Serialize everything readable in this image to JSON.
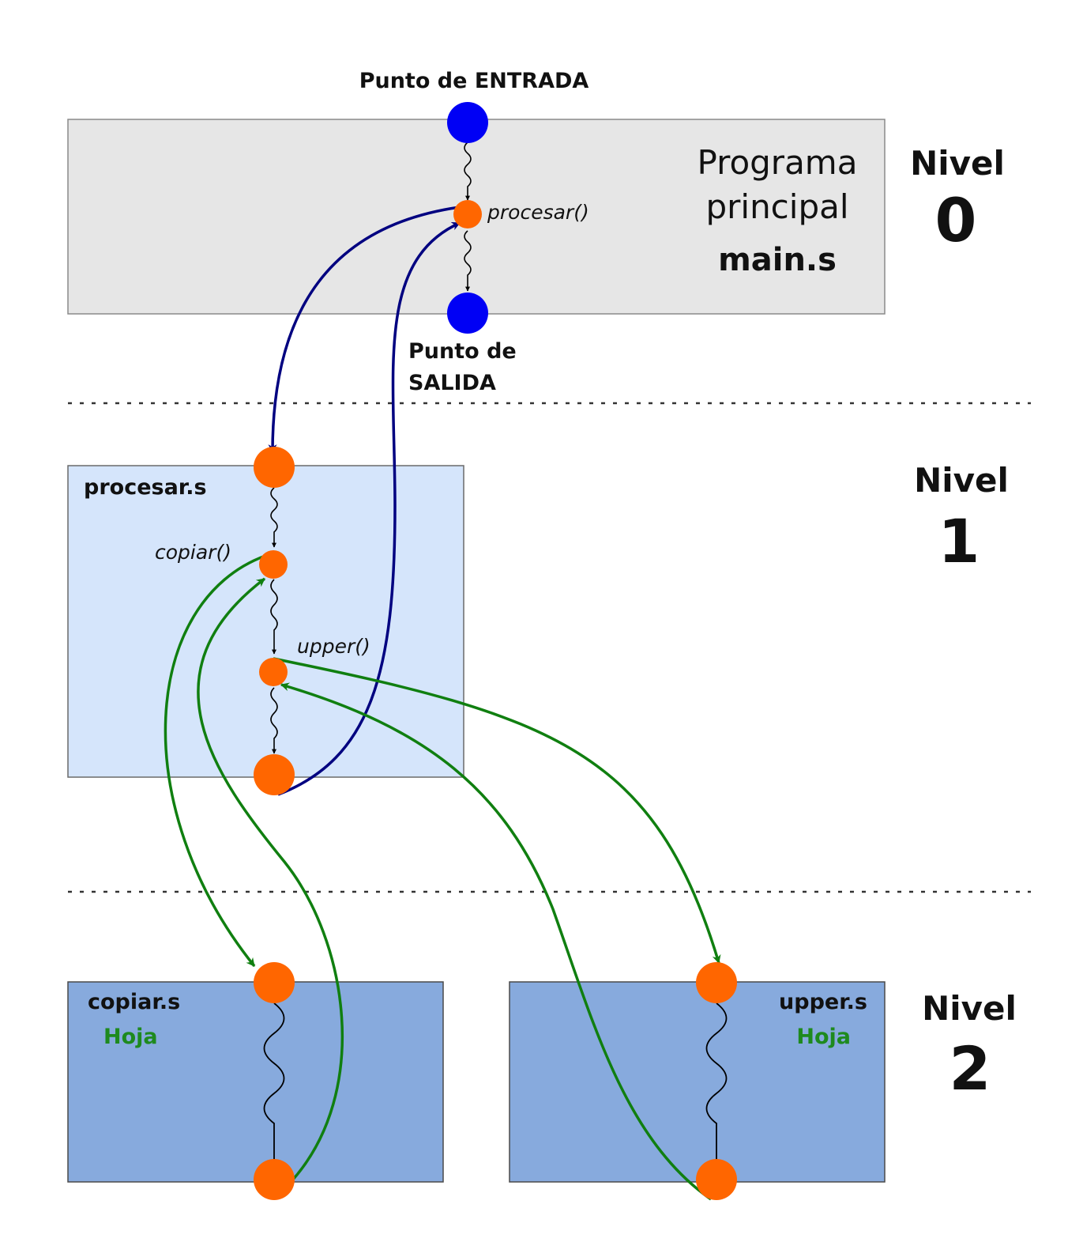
{
  "entry_label": "Punto de ENTRADA",
  "exit_label_line1": "Punto de",
  "exit_label_line2": "SALIDA",
  "main_program": {
    "title_line1": "Programa",
    "title_line2": "principal",
    "file": "main.s",
    "call": "procesar()"
  },
  "procesar_module": {
    "file": "procesar.s",
    "call_copiar": "copiar()",
    "call_upper": "upper()"
  },
  "copiar_module": {
    "file": "copiar.s",
    "tag": "Hoja"
  },
  "upper_module": {
    "file": "upper.s",
    "tag": "Hoja"
  },
  "levels": [
    {
      "word": "Nivel",
      "number": "0"
    },
    {
      "word": "Nivel",
      "number": "1"
    },
    {
      "word": "Nivel",
      "number": "2"
    }
  ],
  "colors": {
    "main_box": "#e6e6e6",
    "procesar_box": "#d5e5fb",
    "leaf_box": "#87aadd",
    "entry_exit_node": "#0000f5",
    "call_node": "#ff6600",
    "level0_1_arrow": "#000080",
    "level1_2_arrow": "#107f10",
    "leaf_label": "#1e8a1e"
  }
}
